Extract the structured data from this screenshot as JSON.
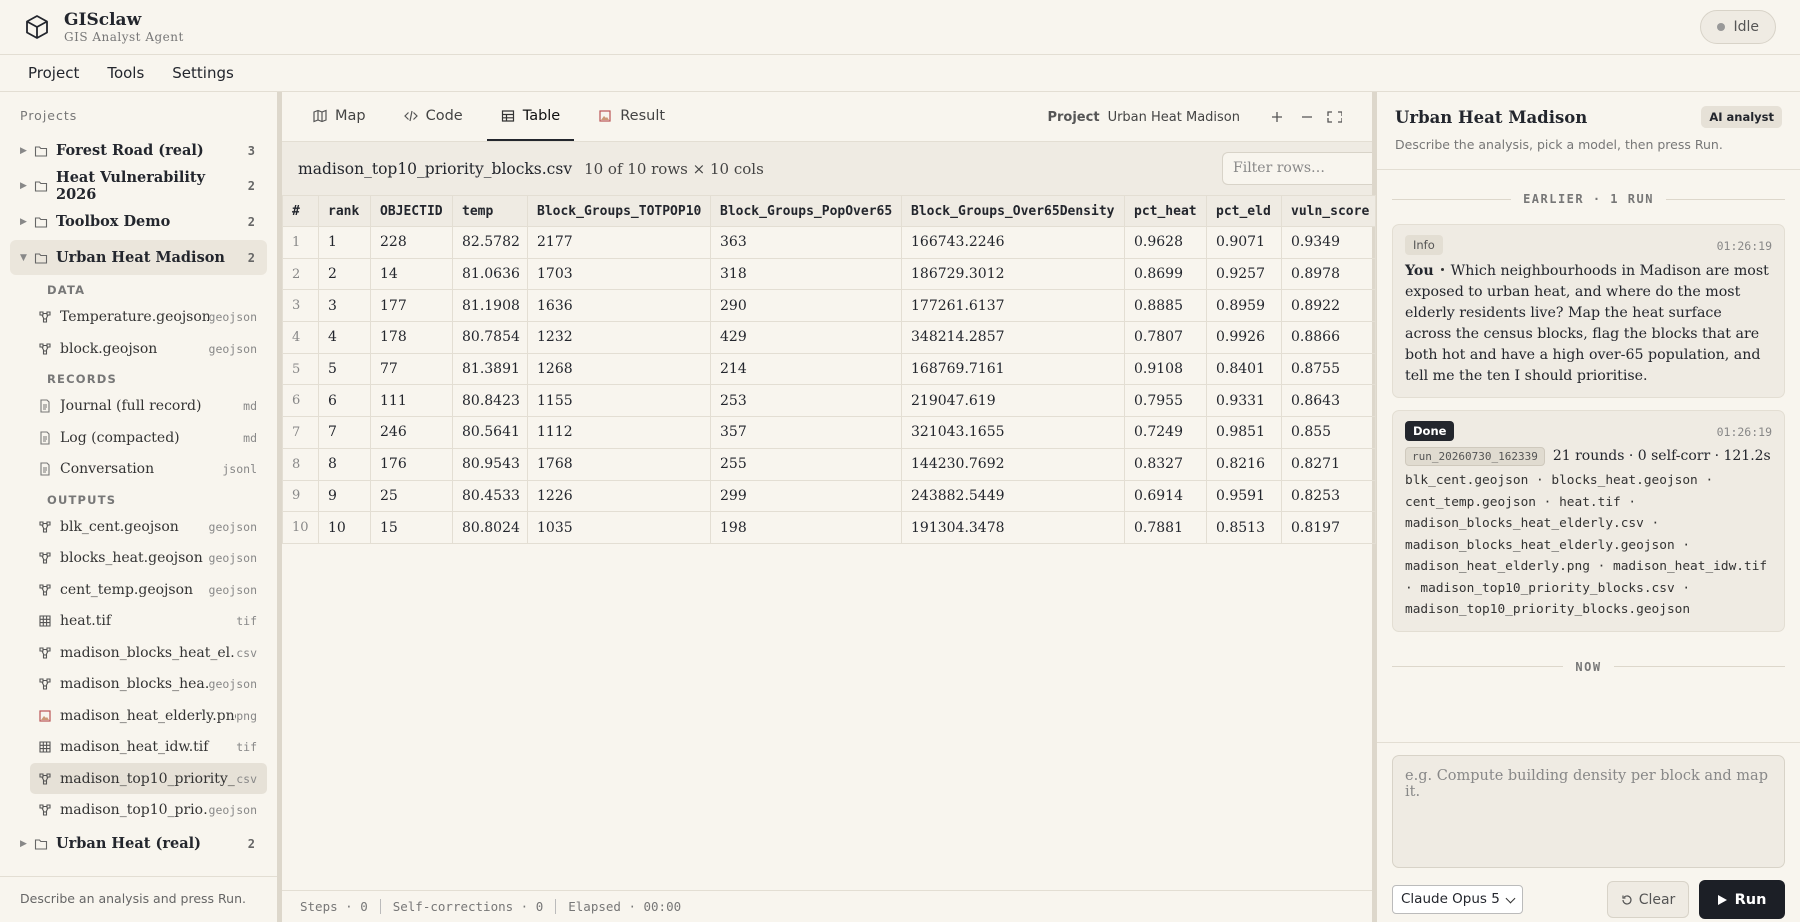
{
  "header": {
    "title": "GISclaw",
    "subtitle": "GIS Analyst Agent",
    "status": "Idle"
  },
  "menu": [
    "Project",
    "Tools",
    "Settings"
  ],
  "sidebar": {
    "heading": "Projects",
    "projects": [
      {
        "name": "Forest Road (real)",
        "count": 3
      },
      {
        "name": "Heat Vulnerability 2026",
        "count": 2
      },
      {
        "name": "Toolbox Demo",
        "count": 2
      },
      {
        "name": "Urban Heat Madison",
        "count": 2,
        "open": true,
        "sections": [
          {
            "heading": "DATA",
            "files": [
              {
                "name": "Temperature.geojson",
                "ext": "geojson",
                "icon": "vector"
              },
              {
                "name": "block.geojson",
                "ext": "geojson",
                "icon": "vector"
              }
            ]
          },
          {
            "heading": "RECORDS",
            "files": [
              {
                "name": "Journal (full record)",
                "ext": "md",
                "icon": "doc"
              },
              {
                "name": "Log (compacted)",
                "ext": "md",
                "icon": "doc"
              },
              {
                "name": "Conversation",
                "ext": "jsonl",
                "icon": "doc"
              }
            ]
          },
          {
            "heading": "OUTPUTS",
            "files": [
              {
                "name": "blk_cent.geojson",
                "ext": "geojson",
                "icon": "vector"
              },
              {
                "name": "blocks_heat.geojson",
                "ext": "geojson",
                "icon": "vector"
              },
              {
                "name": "cent_temp.geojson",
                "ext": "geojson",
                "icon": "vector"
              },
              {
                "name": "heat.tif",
                "ext": "tif",
                "icon": "raster"
              },
              {
                "name": "madison_blocks_heat_el…",
                "ext": "csv",
                "icon": "vector"
              },
              {
                "name": "madison_blocks_hea…",
                "ext": "geojson",
                "icon": "vector"
              },
              {
                "name": "madison_heat_elderly.png",
                "ext": "png",
                "icon": "image"
              },
              {
                "name": "madison_heat_idw.tif",
                "ext": "tif",
                "icon": "raster"
              },
              {
                "name": "madison_top10_priority_…",
                "ext": "csv",
                "icon": "vector",
                "selected": true
              },
              {
                "name": "madison_top10_prio…",
                "ext": "geojson",
                "icon": "vector"
              }
            ]
          }
        ]
      },
      {
        "name": "Urban Heat (real)",
        "count": 2
      }
    ],
    "footer": "Describe an analysis and press Run."
  },
  "tabs": [
    {
      "label": "Map",
      "icon": "map"
    },
    {
      "label": "Code",
      "icon": "code"
    },
    {
      "label": "Table",
      "icon": "table",
      "active": true
    },
    {
      "label": "Result",
      "icon": "image"
    }
  ],
  "project_label": "Project",
  "project_name": "Urban Heat Madison",
  "table": {
    "file": "madison_top10_priority_blocks.csv",
    "summary": "10 of 10 rows × 10 cols",
    "filter_placeholder": "Filter rows…",
    "columns": [
      "#",
      "rank",
      "OBJECTID",
      "temp",
      "Block_Groups_TOTPOP10",
      "Block_Groups_PopOver65",
      "Block_Groups_Over65Density",
      "pct_heat",
      "pct_eld",
      "vuln_score"
    ],
    "rows": [
      [
        1,
        1,
        228,
        82.5782,
        2177,
        363,
        166743.2246,
        0.9628,
        0.9071,
        0.9349
      ],
      [
        2,
        2,
        14,
        81.0636,
        1703,
        318,
        186729.3012,
        0.8699,
        0.9257,
        0.8978
      ],
      [
        3,
        3,
        177,
        81.1908,
        1636,
        290,
        177261.6137,
        0.8885,
        0.8959,
        0.8922
      ],
      [
        4,
        4,
        178,
        80.7854,
        1232,
        429,
        348214.2857,
        0.7807,
        0.9926,
        0.8866
      ],
      [
        5,
        5,
        77,
        81.3891,
        1268,
        214,
        168769.7161,
        0.9108,
        0.8401,
        0.8755
      ],
      [
        6,
        6,
        111,
        80.8423,
        1155,
        253,
        219047.619,
        0.7955,
        0.9331,
        0.8643
      ],
      [
        7,
        7,
        246,
        80.5641,
        1112,
        357,
        321043.1655,
        0.7249,
        0.9851,
        0.855
      ],
      [
        8,
        8,
        176,
        80.9543,
        1768,
        255,
        144230.7692,
        0.8327,
        0.8216,
        0.8271
      ],
      [
        9,
        9,
        25,
        80.4533,
        1226,
        299,
        243882.5449,
        0.6914,
        0.9591,
        0.8253
      ],
      [
        10,
        10,
        15,
        80.8024,
        1035,
        198,
        191304.3478,
        0.7881,
        0.8513,
        0.8197
      ]
    ]
  },
  "status": [
    "Steps · 0",
    "Self-corrections · 0",
    "Elapsed · 00:00"
  ],
  "panel": {
    "title": "Urban Heat Madison",
    "badge": "AI analyst",
    "description": "Describe the analysis, pick a model, then press Run.",
    "earlier": "EARLIER · 1 RUN",
    "messages": [
      {
        "tag": "Info",
        "time": "01:26:19",
        "speaker": "You",
        "text": "Which neighbourhoods in Madison are most exposed to urban heat, and where do the most elderly residents live? Map the heat surface across the census blocks, flag the blocks that are both hot and have a high over-65 population, and tell me the ten I should prioritise."
      },
      {
        "tag": "Done",
        "time": "01:26:19",
        "run_id": "run_20260730_162339",
        "stats": "21 rounds · 0 self-corr · 121.2s",
        "files": "blk_cent.geojson · blocks_heat.geojson · cent_temp.geojson · heat.tif · madison_blocks_heat_elderly.csv · madison_blocks_heat_elderly.geojson · madison_heat_elderly.png · madison_heat_idw.tif · madison_top10_priority_blocks.csv · madison_top10_priority_blocks.geojson"
      }
    ],
    "now": "NOW",
    "input_placeholder": "e.g. Compute building density per block and map it.",
    "model": "Claude Opus 5",
    "clear": "Clear",
    "run": "Run"
  }
}
